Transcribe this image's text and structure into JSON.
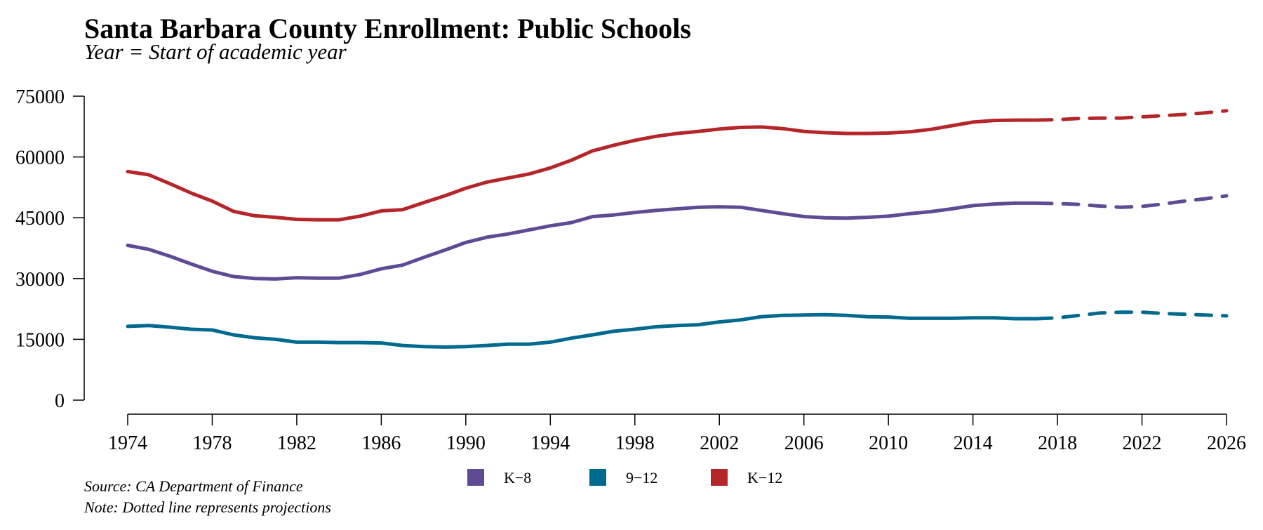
{
  "chart_data": {
    "type": "line",
    "title": "Santa Barbara County Enrollment: Public Schools",
    "subtitle": "Year = Start of academic year",
    "xlabel": "",
    "ylabel": "",
    "xlim": [
      1974,
      2026
    ],
    "ylim": [
      0,
      75000
    ],
    "x_ticks": [
      "1974",
      "1978",
      "1982",
      "1986",
      "1990",
      "1994",
      "1998",
      "2002",
      "2006",
      "2010",
      "2014",
      "2018",
      "2022",
      "2026"
    ],
    "y_ticks": [
      "0",
      "15000",
      "30000",
      "45000",
      "60000",
      "75000"
    ],
    "grid": false,
    "legend_position": "bottom",
    "series": [
      {
        "name": "K−8",
        "color": "#5e4b94",
        "actual": {
          "x": [
            1974,
            1975,
            1976,
            1977,
            1978,
            1979,
            1980,
            1981,
            1982,
            1983,
            1984,
            1985,
            1986,
            1987,
            1988,
            1989,
            1990,
            1991,
            1992,
            1993,
            1994,
            1995,
            1996,
            1997,
            1998,
            1999,
            2000,
            2001,
            2002,
            2003,
            2004,
            2005,
            2006,
            2007,
            2008,
            2009,
            2010,
            2011,
            2012,
            2013,
            2014,
            2015,
            2016,
            2017
          ],
          "y": [
            38200,
            37200,
            35500,
            33600,
            31800,
            30500,
            30000,
            29900,
            30200,
            30100,
            30100,
            31000,
            32400,
            33300,
            35200,
            37000,
            38900,
            40200,
            41000,
            42000,
            43000,
            43800,
            45300,
            45700,
            46300,
            46800,
            47200,
            47600,
            47700,
            47600,
            46800,
            46000,
            45300,
            45000,
            44900,
            45100,
            45400,
            46000,
            46500,
            47200,
            48000,
            48400,
            48600,
            48600
          ]
        },
        "projected": {
          "x": [
            2017,
            2018,
            2019,
            2020,
            2021,
            2022,
            2023,
            2024,
            2025,
            2026
          ],
          "y": [
            48600,
            48500,
            48300,
            47900,
            47600,
            47800,
            48400,
            49100,
            49700,
            50400
          ]
        }
      },
      {
        "name": "9−12",
        "color": "#006a8e",
        "actual": {
          "x": [
            1974,
            1975,
            1976,
            1977,
            1978,
            1979,
            1980,
            1981,
            1982,
            1983,
            1984,
            1985,
            1986,
            1987,
            1988,
            1989,
            1990,
            1991,
            1992,
            1993,
            1994,
            1995,
            1996,
            1997,
            1998,
            1999,
            2000,
            2001,
            2002,
            2003,
            2004,
            2005,
            2006,
            2007,
            2008,
            2009,
            2010,
            2011,
            2012,
            2013,
            2014,
            2015,
            2016,
            2017
          ],
          "y": [
            18200,
            18400,
            18000,
            17500,
            17300,
            16100,
            15400,
            15000,
            14300,
            14300,
            14200,
            14200,
            14100,
            13500,
            13200,
            13100,
            13200,
            13500,
            13800,
            13800,
            14300,
            15300,
            16100,
            17000,
            17500,
            18100,
            18400,
            18600,
            19300,
            19800,
            20600,
            20900,
            21000,
            21100,
            20900,
            20600,
            20500,
            20200,
            20200,
            20200,
            20300,
            20300,
            20100,
            20100
          ]
        },
        "projected": {
          "x": [
            2017,
            2018,
            2019,
            2020,
            2021,
            2022,
            2023,
            2024,
            2025,
            2026
          ],
          "y": [
            20100,
            20300,
            20900,
            21500,
            21700,
            21700,
            21400,
            21200,
            21000,
            20800
          ]
        }
      },
      {
        "name": "K−12",
        "color": "#b5262b",
        "actual": {
          "x": [
            1974,
            1975,
            1976,
            1977,
            1978,
            1979,
            1980,
            1981,
            1982,
            1983,
            1984,
            1985,
            1986,
            1987,
            1988,
            1989,
            1990,
            1991,
            1992,
            1993,
            1994,
            1995,
            1996,
            1997,
            1998,
            1999,
            2000,
            2001,
            2002,
            2003,
            2004,
            2005,
            2006,
            2007,
            2008,
            2009,
            2010,
            2011,
            2012,
            2013,
            2014,
            2015,
            2016,
            2017
          ],
          "y": [
            56400,
            55600,
            53400,
            51100,
            49100,
            46600,
            45500,
            45100,
            44600,
            44500,
            44500,
            45400,
            46700,
            47000,
            48700,
            50400,
            52300,
            53800,
            54800,
            55800,
            57300,
            59200,
            61500,
            62900,
            64100,
            65100,
            65800,
            66300,
            66900,
            67300,
            67400,
            67000,
            66300,
            66000,
            65800,
            65800,
            65900,
            66200,
            66800,
            67700,
            68600,
            69000,
            69100,
            69100
          ]
        },
        "projected": {
          "x": [
            2017,
            2018,
            2019,
            2020,
            2021,
            2022,
            2023,
            2024,
            2025,
            2026
          ],
          "y": [
            69100,
            69200,
            69500,
            69600,
            69600,
            69900,
            70200,
            70500,
            70900,
            71400
          ]
        }
      }
    ],
    "notes": [
      "Source: CA Department of Finance",
      "Note: Dotted line represents projections"
    ]
  }
}
